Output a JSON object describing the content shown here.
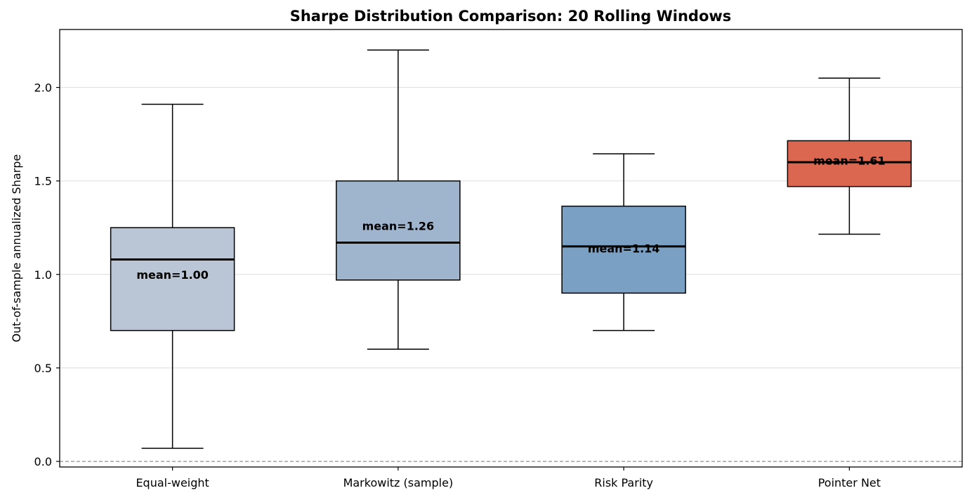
{
  "chart_data": {
    "type": "box",
    "title": "Sharpe Distribution Comparison: 20 Rolling Windows",
    "xlabel": "",
    "ylabel": "Out-of-sample annualized Sharpe",
    "ylim": [
      -0.03,
      2.31
    ],
    "yticks": [
      0.0,
      0.5,
      1.0,
      1.5,
      2.0
    ],
    "ytick_labels": [
      "0.0",
      "0.5",
      "1.0",
      "1.5",
      "2.0"
    ],
    "grid": "y",
    "reference_line": {
      "y": 0.0,
      "style": "dashed",
      "color": "#808080"
    },
    "categories": [
      "Equal-weight",
      "Markowitz (sample)",
      "Risk Parity",
      "Pointer Net"
    ],
    "boxes": [
      {
        "category": "Equal-weight",
        "whisker_low": 0.07,
        "q1": 0.7,
        "median": 1.08,
        "q3": 1.25,
        "whisker_high": 1.91,
        "mean": 1.0,
        "mean_label": "mean=1.00",
        "color": "#bac6d5"
      },
      {
        "category": "Markowitz (sample)",
        "whisker_low": 0.6,
        "q1": 0.97,
        "median": 1.17,
        "q3": 1.5,
        "whisker_high": 2.2,
        "mean": 1.26,
        "mean_label": "mean=1.26",
        "color": "#9fb5cd"
      },
      {
        "category": "Risk Parity",
        "whisker_low": 0.7,
        "q1": 0.9,
        "median": 1.15,
        "q3": 1.365,
        "whisker_high": 1.645,
        "mean": 1.14,
        "mean_label": "mean=1.14",
        "color": "#7aa0c3"
      },
      {
        "category": "Pointer Net",
        "whisker_low": 1.215,
        "q1": 1.47,
        "median": 1.6,
        "q3": 1.715,
        "whisker_high": 2.05,
        "mean": 1.61,
        "mean_label": "mean=1.61",
        "color": "#dc6750"
      }
    ]
  }
}
